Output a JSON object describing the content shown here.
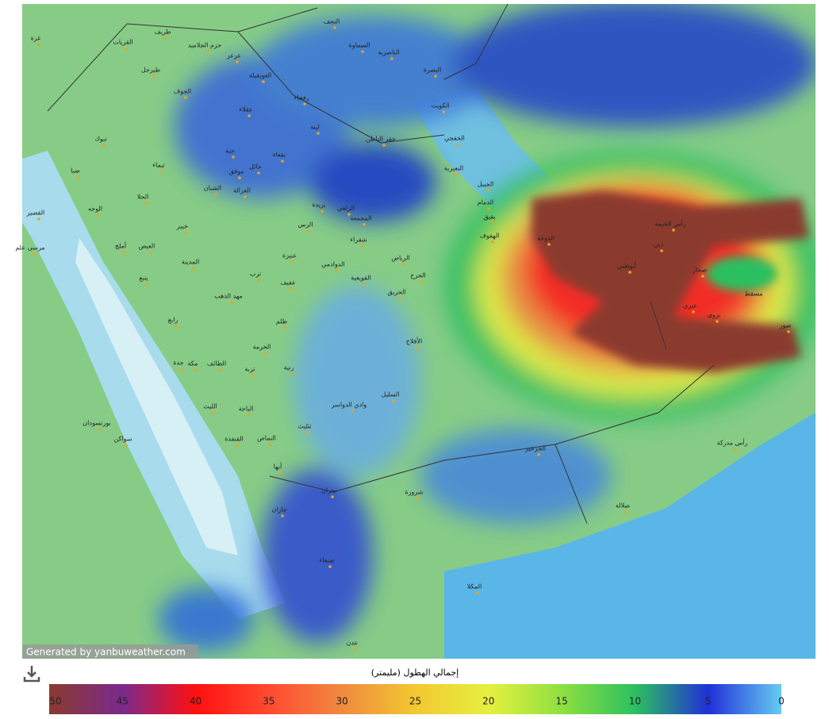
{
  "map": {
    "attribution": "Generated by yanbuweather.com",
    "labels": [
      "غزة",
      "طريف",
      "حزم الجلاميد",
      "عرعر",
      "القريات",
      "طبرجل",
      "العويقيلة",
      "الجوف",
      "رفحاء",
      "عقلاء",
      "النجف",
      "السماوة",
      "الناصرية",
      "البصرة",
      "الكويت",
      "الخفجي",
      "حفر الباطن",
      "لينة",
      "بقعاء",
      "جبة",
      "حائل",
      "موقق",
      "تيماء",
      "تبوك",
      "ضبا",
      "الشنان",
      "الغزالة",
      "الحلا",
      "الوجه",
      "القصير",
      "مرسى علم",
      "بريدة",
      "الزلفي",
      "المجمعة",
      "الرس",
      "خيبر",
      "الجبيل",
      "الدمام",
      "بقيق",
      "الهفوف",
      "النعيرية",
      "الدوحة",
      "رأس الخيمة",
      "دبي",
      "أبوظبي",
      "صحار",
      "مسقط",
      "عبري",
      "صور",
      "نزوى",
      "شقراء",
      "عنيزة",
      "أملج",
      "العيص",
      "المدينة",
      "الدوادمي",
      "الرياض",
      "الخرج",
      "القويعية",
      "ينبع",
      "عفيف",
      "ترب",
      "مهد الذهب",
      "الحريق",
      "رابغ",
      "ظلم",
      "الأفلاج",
      "الخرمة",
      "جدة",
      "مكة",
      "الطائف",
      "تربة",
      "رنية",
      "السليل",
      "وادي الدواسر",
      "الليث",
      "الباحة",
      "بورتسودان",
      "سواكن",
      "القنفذة",
      "النماص",
      "تثليث",
      "الخرخير",
      "رأس مدركة",
      "أبها",
      "نجران",
      "شرورة",
      "جازان",
      "صلالة",
      "صنعاء",
      "المكلا",
      "عدن"
    ]
  },
  "colorbar": {
    "title": "إجمالي الهطول (مليمتر)",
    "range": [
      50,
      0
    ],
    "ticks": [
      50,
      45,
      40,
      35,
      30,
      25,
      20,
      15,
      10,
      5,
      0
    ],
    "colors": [
      "#8b3a2e",
      "#7a2a8c",
      "#ff1010",
      "#ff4a30",
      "#f08a40",
      "#f2c830",
      "#e6f040",
      "#8ee040",
      "#2cc060",
      "#2030d8",
      "#66ccf2"
    ]
  }
}
